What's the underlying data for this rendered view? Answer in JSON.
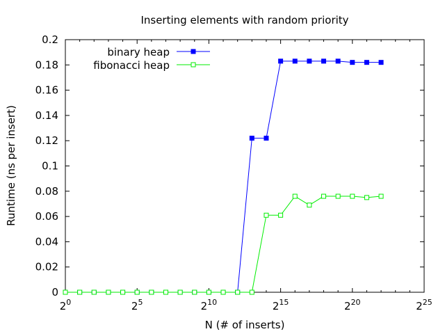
{
  "chart_data": {
    "type": "line",
    "title": "Inserting elements with random priority",
    "xlabel": "N (# of inserts)",
    "ylabel": "Runtime (ns per insert)",
    "x_scale": "log2",
    "xlim": [
      1,
      33554432
    ],
    "ylim": [
      0,
      0.2
    ],
    "x_ticks": [
      {
        "base": "2",
        "exp": "0"
      },
      {
        "base": "2",
        "exp": "5"
      },
      {
        "base": "2",
        "exp": "10"
      },
      {
        "base": "2",
        "exp": "15"
      },
      {
        "base": "2",
        "exp": "20"
      },
      {
        "base": "2",
        "exp": "25"
      }
    ],
    "y_ticks": [
      "0",
      "0.02",
      "0.04",
      "0.06",
      "0.08",
      "0.1",
      "0.12",
      "0.14",
      "0.16",
      "0.18",
      "0.2"
    ],
    "grid": false,
    "legend_position": "top-left",
    "x": [
      1,
      2,
      4,
      8,
      16,
      32,
      64,
      128,
      256,
      512,
      1024,
      2048,
      4096,
      8192,
      16384,
      32768,
      65536,
      131072,
      262144,
      524288,
      1048576,
      2097152,
      4194304
    ],
    "series": [
      {
        "name": "binary heap",
        "color": "#0000ff",
        "marker": "filled-square",
        "values": [
          0,
          0,
          0,
          0,
          0,
          0,
          0,
          0,
          0,
          0,
          0,
          0,
          0,
          0.122,
          0.122,
          0.183,
          0.183,
          0.183,
          0.183,
          0.183,
          0.182,
          0.182,
          0.182
        ]
      },
      {
        "name": "fibonacci heap",
        "color": "#00ee00",
        "marker": "open-square",
        "values": [
          0,
          0,
          0,
          0,
          0,
          0,
          0,
          0,
          0,
          0,
          0,
          0,
          0,
          0,
          0.061,
          0.061,
          0.076,
          0.069,
          0.076,
          0.076,
          0.076,
          0.075,
          0.076
        ]
      }
    ]
  }
}
